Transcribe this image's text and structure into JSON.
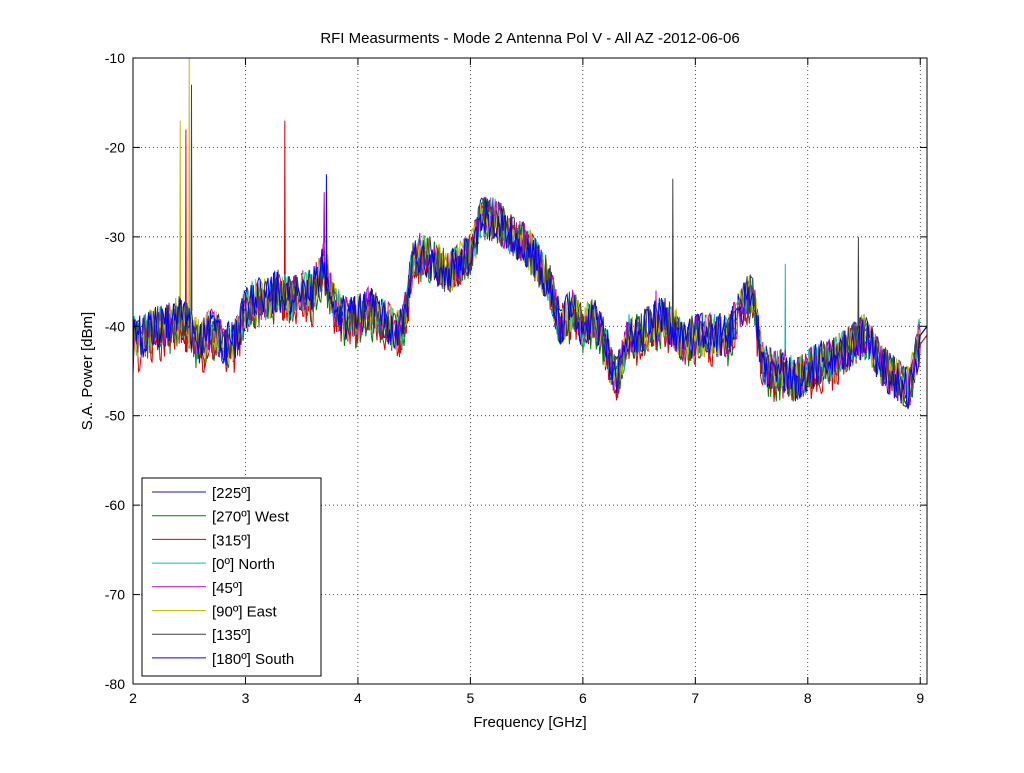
{
  "chart_data": {
    "type": "line",
    "title": "RFI Measurments - Mode 2 Antenna Pol V - All AZ -2012-06-06",
    "xlabel": "Frequency [GHz]",
    "ylabel": "S.A. Power [dBm]",
    "xlim": [
      2,
      9.06
    ],
    "ylim": [
      -80,
      -10
    ],
    "xticks": [
      "2",
      "3",
      "4",
      "5",
      "6",
      "7",
      "8",
      "9"
    ],
    "yticks": [
      "-10",
      "-20",
      "-30",
      "-40",
      "-50",
      "-60",
      "-70",
      "-80"
    ],
    "grid": true,
    "legend_position": "bottom-left",
    "x": [
      2.0,
      2.1,
      2.2,
      2.3,
      2.4,
      2.5,
      2.6,
      2.7,
      2.8,
      2.9,
      3.0,
      3.1,
      3.2,
      3.3,
      3.4,
      3.5,
      3.6,
      3.7,
      3.8,
      3.9,
      4.0,
      4.1,
      4.2,
      4.3,
      4.4,
      4.5,
      4.6,
      4.7,
      4.8,
      4.9,
      5.0,
      5.1,
      5.2,
      5.3,
      5.4,
      5.5,
      5.6,
      5.7,
      5.8,
      5.9,
      6.0,
      6.1,
      6.2,
      6.3,
      6.4,
      6.5,
      6.6,
      6.7,
      6.8,
      6.9,
      7.0,
      7.1,
      7.2,
      7.3,
      7.4,
      7.5,
      7.6,
      7.7,
      7.8,
      7.9,
      8.0,
      8.1,
      8.2,
      8.3,
      8.4,
      8.5,
      8.6,
      8.7,
      8.8,
      8.9,
      9.0
    ],
    "series": [
      {
        "name": "[225º]",
        "color": "#1a1aa0",
        "values": [
          -41,
          -41,
          -40,
          -40,
          -39,
          -40,
          -42,
          -40,
          -42,
          -42,
          -38,
          -37,
          -37,
          -36,
          -37,
          -36,
          -36,
          -33,
          -38,
          -39,
          -39,
          -38,
          -39,
          -40,
          -40,
          -32,
          -32,
          -33,
          -34,
          -33,
          -32,
          -28,
          -28,
          -29,
          -30,
          -31,
          -33,
          -35,
          -40,
          -38,
          -40,
          -39,
          -42,
          -46,
          -41,
          -41,
          -40,
          -39,
          -40,
          -42,
          -41,
          -41,
          -41,
          -41,
          -38,
          -36,
          -44,
          -45,
          -45,
          -46,
          -45,
          -44,
          -44,
          -43,
          -42,
          -41,
          -43,
          -45,
          -46,
          -47,
          -41
        ],
        "peaks": []
      },
      {
        "name": "[270º] West",
        "color": "#008000",
        "values": [
          -42,
          -42,
          -41,
          -41,
          -40,
          -41,
          -43,
          -41,
          -43,
          -43,
          -39,
          -38,
          -38,
          -37,
          -38,
          -37,
          -37,
          -34,
          -39,
          -40,
          -40,
          -39,
          -40,
          -41,
          -41,
          -32,
          -33,
          -33,
          -34,
          -33,
          -32,
          -28,
          -28,
          -29,
          -30,
          -31,
          -33,
          -36,
          -41,
          -40,
          -41,
          -40,
          -43,
          -46,
          -42,
          -41,
          -41,
          -40,
          -40,
          -42,
          -42,
          -41,
          -42,
          -42,
          -39,
          -37,
          -45,
          -46,
          -46,
          -46,
          -45,
          -45,
          -44,
          -44,
          -42,
          -41,
          -43,
          -45,
          -46,
          -47,
          -42
        ],
        "peaks": []
      },
      {
        "name": "[315º]",
        "color": "#e00000",
        "values": [
          -43,
          -43,
          -42,
          -41,
          -40,
          -41,
          -43,
          -42,
          -43,
          -43,
          -39,
          -38,
          -38,
          -37,
          -38,
          -37,
          -38,
          -34,
          -39,
          -40,
          -40,
          -39,
          -40,
          -41,
          -41,
          -33,
          -33,
          -33,
          -34,
          -33,
          -32,
          -28,
          -28,
          -29,
          -30,
          -31,
          -33,
          -36,
          -40,
          -39,
          -41,
          -40,
          -43,
          -46,
          -42,
          -42,
          -41,
          -40,
          -41,
          -42,
          -42,
          -42,
          -42,
          -42,
          -39,
          -37,
          -45,
          -46,
          -46,
          -46,
          -46,
          -45,
          -45,
          -44,
          -42,
          -41,
          -43,
          -45,
          -46,
          -47,
          -42
        ],
        "peaks": [
          {
            "x": 3.35,
            "y": -17
          },
          {
            "x": 2.47,
            "y": -18
          }
        ]
      },
      {
        "name": "[0º] North",
        "color": "#00bfbf",
        "values": [
          -41,
          -41,
          -40,
          -40,
          -39,
          -40,
          -42,
          -40,
          -42,
          -42,
          -38,
          -37,
          -37,
          -36,
          -37,
          -36,
          -36,
          -33,
          -38,
          -39,
          -39,
          -38,
          -39,
          -40,
          -40,
          -32,
          -32,
          -33,
          -34,
          -33,
          -32,
          -28,
          -28,
          -29,
          -30,
          -31,
          -33,
          -35,
          -40,
          -38,
          -40,
          -39,
          -42,
          -46,
          -41,
          -41,
          -40,
          -39,
          -40,
          -42,
          -41,
          -41,
          -41,
          -41,
          -38,
          -36,
          -44,
          -45,
          -45,
          -46,
          -45,
          -44,
          -44,
          -43,
          -42,
          -41,
          -43,
          -45,
          -46,
          -47,
          -41
        ],
        "peaks": [
          {
            "x": 7.8,
            "y": -33
          }
        ]
      },
      {
        "name": "[45º]",
        "color": "#bf00bf",
        "values": [
          -41,
          -41,
          -40,
          -40,
          -39,
          -40,
          -42,
          -40,
          -42,
          -42,
          -38,
          -37,
          -37,
          -36,
          -37,
          -36,
          -36,
          -33,
          -38,
          -39,
          -39,
          -38,
          -39,
          -40,
          -40,
          -32,
          -32,
          -33,
          -34,
          -33,
          -32,
          -28,
          -28,
          -29,
          -30,
          -31,
          -33,
          -35,
          -40,
          -38,
          -40,
          -39,
          -42,
          -46,
          -41,
          -41,
          -40,
          -39,
          -40,
          -42,
          -41,
          -41,
          -41,
          -41,
          -38,
          -36,
          -44,
          -45,
          -45,
          -46,
          -45,
          -44,
          -44,
          -43,
          -42,
          -41,
          -43,
          -45,
          -46,
          -47,
          -41
        ],
        "peaks": [
          {
            "x": 3.7,
            "y": -25
          },
          {
            "x": 6.65,
            "y": -36
          }
        ]
      },
      {
        "name": "[90º] East",
        "color": "#bfbf00",
        "values": [
          -41,
          -41,
          -40,
          -40,
          -39,
          -40,
          -42,
          -40,
          -42,
          -42,
          -38,
          -37,
          -37,
          -36,
          -37,
          -36,
          -36,
          -33,
          -38,
          -39,
          -39,
          -38,
          -39,
          -40,
          -40,
          -32,
          -32,
          -33,
          -34,
          -33,
          -32,
          -28,
          -28,
          -29,
          -30,
          -31,
          -33,
          -35,
          -40,
          -38,
          -40,
          -39,
          -42,
          -46,
          -41,
          -41,
          -40,
          -39,
          -40,
          -42,
          -41,
          -41,
          -41,
          -41,
          -38,
          -36,
          -44,
          -45,
          -45,
          -46,
          -45,
          -44,
          -44,
          -43,
          -42,
          -41,
          -43,
          -45,
          -46,
          -47,
          -41
        ],
        "peaks": [
          {
            "x": 2.5,
            "y": -10
          },
          {
            "x": 2.42,
            "y": -17
          }
        ]
      },
      {
        "name": "[135º]",
        "color": "#404040",
        "values": [
          -41,
          -41,
          -40,
          -40,
          -39,
          -40,
          -42,
          -40,
          -42,
          -42,
          -38,
          -37,
          -37,
          -36,
          -37,
          -36,
          -36,
          -33,
          -38,
          -39,
          -39,
          -38,
          -39,
          -40,
          -40,
          -32,
          -32,
          -33,
          -34,
          -33,
          -32,
          -28,
          -28,
          -29,
          -30,
          -31,
          -33,
          -35,
          -40,
          -38,
          -40,
          -39,
          -42,
          -46,
          -41,
          -41,
          -40,
          -39,
          -40,
          -42,
          -41,
          -41,
          -41,
          -41,
          -38,
          -36,
          -44,
          -45,
          -45,
          -46,
          -45,
          -44,
          -44,
          -43,
          -42,
          -41,
          -43,
          -45,
          -46,
          -47,
          -41
        ],
        "peaks": [
          {
            "x": 6.8,
            "y": -23.5
          },
          {
            "x": 8.45,
            "y": -30
          },
          {
            "x": 2.52,
            "y": -13
          }
        ]
      },
      {
        "name": "[180º] South",
        "color": "#0000ff",
        "values": [
          -41,
          -41,
          -40,
          -40,
          -39,
          -40,
          -42,
          -40,
          -42,
          -42,
          -38,
          -37,
          -37,
          -36,
          -37,
          -36,
          -36,
          -33,
          -38,
          -39,
          -39,
          -38,
          -39,
          -40,
          -40,
          -32,
          -32,
          -33,
          -34,
          -33,
          -32,
          -28,
          -28,
          -29,
          -30,
          -31,
          -33,
          -35,
          -40,
          -38,
          -40,
          -39,
          -42,
          -46,
          -41,
          -41,
          -40,
          -39,
          -40,
          -42,
          -41,
          -41,
          -41,
          -41,
          -38,
          -36,
          -44,
          -45,
          -45,
          -46,
          -45,
          -44,
          -44,
          -43,
          -42,
          -41,
          -43,
          -45,
          -46,
          -47,
          -41
        ],
        "peaks": [
          {
            "x": 3.72,
            "y": -23
          }
        ]
      }
    ]
  }
}
